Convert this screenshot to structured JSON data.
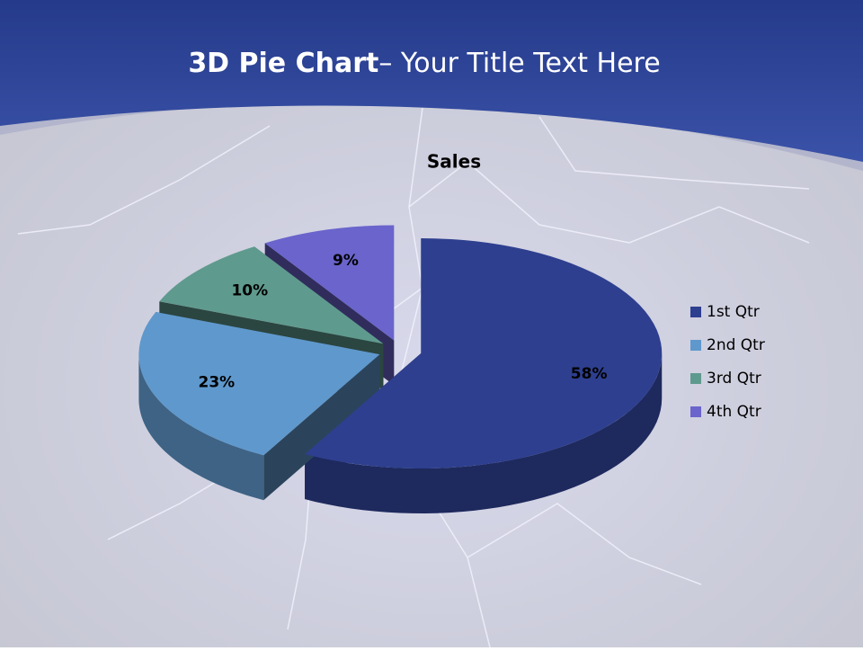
{
  "slide_title": {
    "bold": "3D Pie Chart",
    "rest": "– Your Title Text Here"
  },
  "chart_data": {
    "type": "pie",
    "title": "Sales",
    "categories": [
      "1st Qtr",
      "2nd Qtr",
      "3rd Qtr",
      "4th Qtr"
    ],
    "values": [
      58,
      23,
      10,
      9
    ],
    "value_labels": [
      "58%",
      "23%",
      "10%",
      "9%"
    ],
    "colors": [
      "#2e3f8f",
      "#5f98cc",
      "#5f9a8e",
      "#6a64cc"
    ],
    "legend": "right"
  }
}
